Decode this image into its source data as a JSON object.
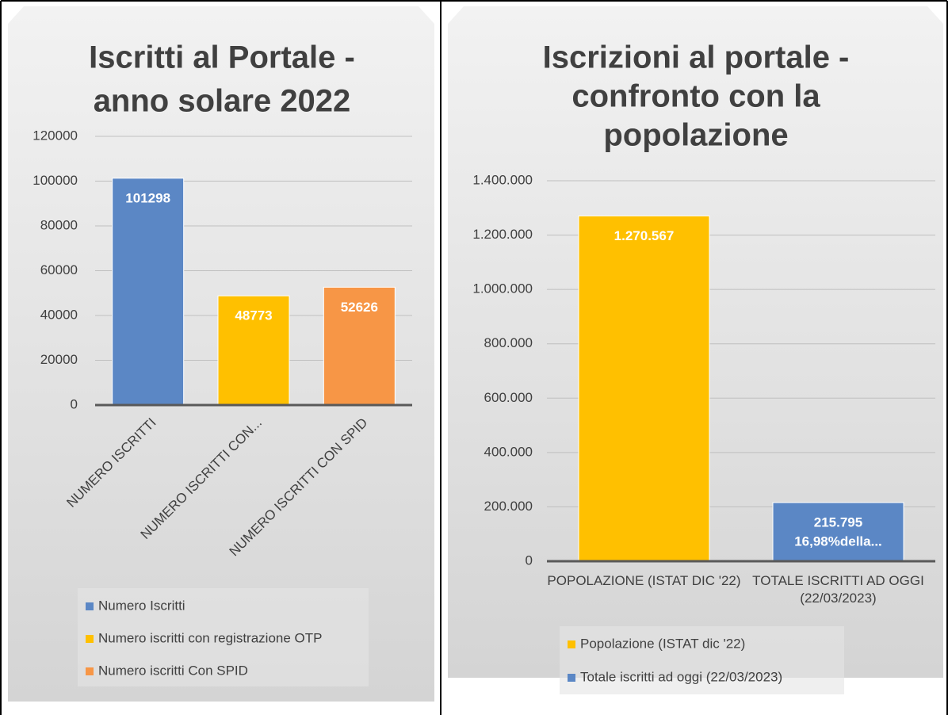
{
  "chart_data": [
    {
      "type": "bar",
      "title": [
        "Iscritti al Portale -",
        "anno solare 2022"
      ],
      "categories": [
        "NUMERO ISCRITTI",
        "NUMERO ISCRITTI CON...",
        "NUMERO ISCRITTI CON SPID"
      ],
      "series": [
        {
          "name": "Numero Iscritti",
          "color": "#5b87c5",
          "values": [
            101298,
            null,
            null
          ]
        },
        {
          "name": "Numero iscritti con registrazione OTP",
          "color": "#ffc000",
          "values": [
            null,
            48773,
            null
          ]
        },
        {
          "name": "Numero iscritti Con SPID",
          "color": "#f79646",
          "values": [
            null,
            null,
            52626
          ]
        }
      ],
      "ylim": [
        0,
        120000
      ],
      "yticks": [
        0,
        20000,
        40000,
        60000,
        80000,
        100000,
        120000
      ],
      "grid": true,
      "legend": "bottom"
    },
    {
      "type": "bar",
      "title": [
        "Iscrizioni al portale -",
        "confronto con la",
        "popolazione"
      ],
      "categories": [
        "POPOLAZIONE (ISTAT DIC '22)",
        "TOTALE ISCRITTI AD OGGI (22/03/2023)"
      ],
      "series": [
        {
          "name": "Popolazione (ISTAT dic '22)",
          "color": "#ffc000",
          "values": [
            1270567,
            null
          ],
          "value_labels": [
            "1.270.567",
            null
          ]
        },
        {
          "name": "Totale iscritti ad oggi (22/03/2023)",
          "color": "#5b87c5",
          "values": [
            null,
            215795
          ],
          "value_labels": [
            null,
            "215.795"
          ],
          "extra_labels": [
            null,
            "16,98%della..."
          ]
        }
      ],
      "ylim": [
        0,
        1400000
      ],
      "yticks": [
        0,
        {
          "value": 200000,
          "label": "200.000"
        },
        {
          "value": 400000,
          "label": "400.000"
        },
        {
          "value": 600000,
          "label": "600.000"
        },
        {
          "value": 800000,
          "label": "800.000"
        },
        {
          "value": 1000000,
          "label": "1.000.000"
        },
        {
          "value": 1200000,
          "label": "1.200.000"
        },
        {
          "value": 1400000,
          "label": "1.400.000"
        }
      ],
      "grid": true,
      "legend": "bottom"
    }
  ]
}
